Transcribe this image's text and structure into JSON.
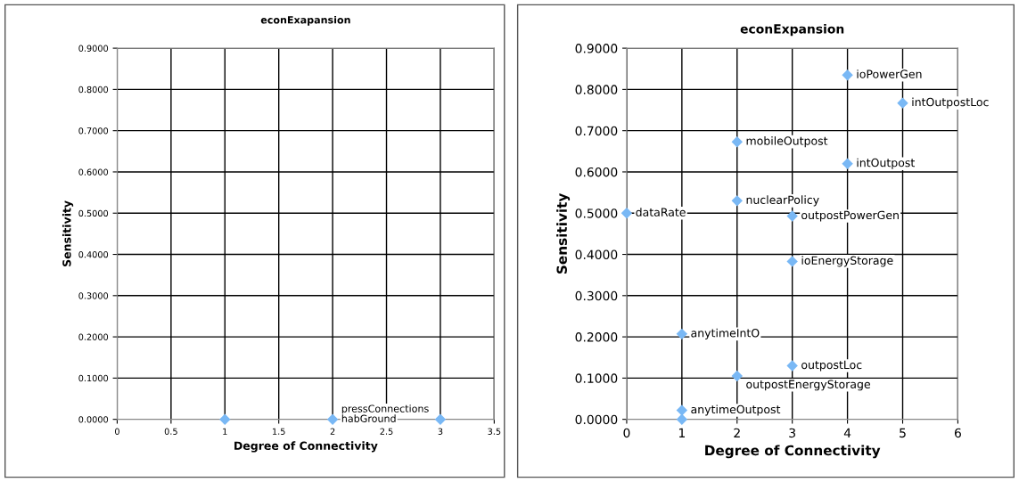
{
  "chart_data": [
    {
      "type": "scatter",
      "title": "econExapansion",
      "xlabel": "Degree of Connectivity",
      "ylabel": "Sensitivity",
      "x": [
        1,
        2,
        3
      ],
      "values": [
        0,
        0,
        0
      ],
      "color": "#79b8f5",
      "marker": "diamond",
      "grid": true,
      "legend": false,
      "xlim": [
        0,
        3.5
      ],
      "ylim": [
        0,
        0.9
      ],
      "xticks": [
        0,
        0.5,
        1,
        1.5,
        2,
        2.5,
        3,
        3.5
      ],
      "yticks": [
        {
          "value": 0,
          "label": "0.0000"
        },
        {
          "value": 0.1,
          "label": "0.1000"
        },
        {
          "value": 0.2,
          "label": "0.2000"
        },
        {
          "value": 0.3,
          "label": "0.3000"
        },
        {
          "value": 0.4,
          "label": "0.4000"
        },
        {
          "value": 0.5,
          "label": "0.5000"
        },
        {
          "value": 0.6,
          "label": "0.6000"
        },
        {
          "value": 0.7,
          "label": "0.7000"
        },
        {
          "value": 0.8,
          "label": "0.8000"
        },
        {
          "value": 0.9,
          "label": "0.9000"
        }
      ],
      "annotations": [
        {
          "text": "pressConnections",
          "x": 2,
          "y": 0
        },
        {
          "text": "habGround",
          "x": 2,
          "y": 0
        }
      ]
    },
    {
      "type": "scatter",
      "title": "econExpansion",
      "xlabel": "Degree of Connectivity",
      "ylabel": "Sensitivity",
      "x": [
        4,
        5,
        2,
        4,
        2,
        0,
        3,
        3,
        1,
        3,
        2,
        1,
        1
      ],
      "values": [
        0.835,
        0.767,
        0.673,
        0.62,
        0.53,
        0.5,
        0.493,
        0.383,
        0.207,
        0.13,
        0.105,
        0.022,
        0
      ],
      "color": "#79b8f5",
      "marker": "diamond",
      "grid": true,
      "legend": false,
      "xlim": [
        0,
        6
      ],
      "ylim": [
        0,
        0.9
      ],
      "xticks": [
        0,
        1,
        2,
        3,
        4,
        5,
        6
      ],
      "yticks": [
        {
          "value": 0,
          "label": "0.0000"
        },
        {
          "value": 0.1,
          "label": "0.1000"
        },
        {
          "value": 0.2,
          "label": "0.2000"
        },
        {
          "value": 0.3,
          "label": "0.3000"
        },
        {
          "value": 0.4,
          "label": "0.4000"
        },
        {
          "value": 0.5,
          "label": "0.5000"
        },
        {
          "value": 0.6,
          "label": "0.6000"
        },
        {
          "value": 0.7,
          "label": "0.7000"
        },
        {
          "value": 0.8,
          "label": "0.8000"
        },
        {
          "value": 0.9,
          "label": "0.9000"
        }
      ],
      "annotations": [
        {
          "text": "ioPowerGen",
          "x": 4,
          "y": 0.835
        },
        {
          "text": "intOutpostLoc",
          "x": 5,
          "y": 0.767
        },
        {
          "text": "mobileOutpost",
          "x": 2,
          "y": 0.673
        },
        {
          "text": "intOutpost",
          "x": 4,
          "y": 0.62
        },
        {
          "text": "nuclearPolicy",
          "x": 2,
          "y": 0.53
        },
        {
          "text": "dataRate",
          "x": 0,
          "y": 0.5
        },
        {
          "text": "outpostPowerGen",
          "x": 3,
          "y": 0.493
        },
        {
          "text": "ioEnergyStorage",
          "x": 3,
          "y": 0.383
        },
        {
          "text": "anytimeIntO",
          "x": 1,
          "y": 0.207
        },
        {
          "text": "outpostLoc",
          "x": 3,
          "y": 0.13
        },
        {
          "text": "outpostEnergyStorage",
          "x": 2,
          "y": 0.105
        },
        {
          "text": "anytimeOutpost",
          "x": 1,
          "y": 0.022
        }
      ]
    }
  ]
}
